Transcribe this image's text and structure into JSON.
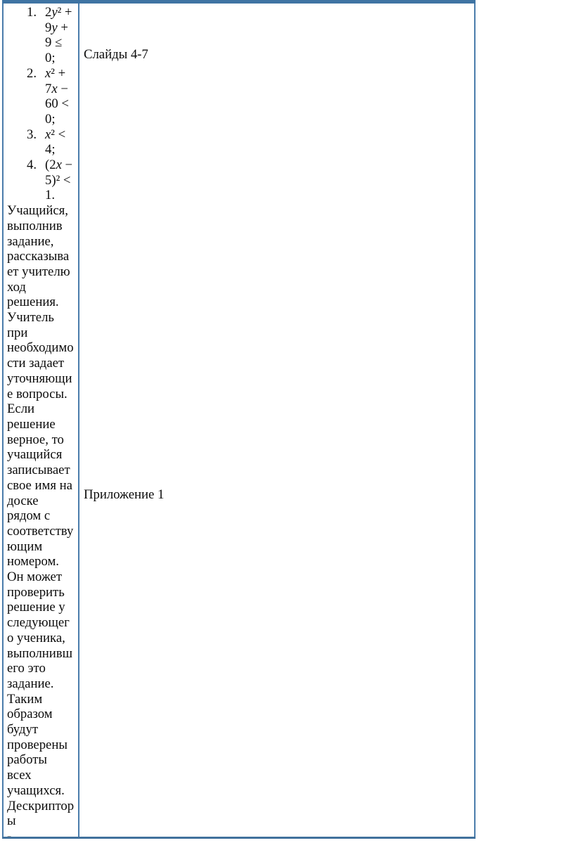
{
  "colors": {
    "border_blue": "#41719C",
    "border_blue_light": "#4a7cab",
    "text": "#0b0b0b",
    "background": "#ffffff"
  },
  "table": {
    "left_cell": {
      "task_list": [
        {
          "number": "1.",
          "expression": "2y² + 9y + 9 ≤ 0;",
          "lines": [
            "2y² +",
            "9y +",
            "9 ≤",
            "0;"
          ]
        },
        {
          "number": "2.",
          "expression": "x² + 7x − 60 < 0;",
          "lines": [
            "x² +",
            "7x −",
            "60 <",
            "0;"
          ]
        },
        {
          "number": "3.",
          "expression": "x² < 4;",
          "lines": [
            "x² <",
            "4;"
          ]
        },
        {
          "number": "4.",
          "expression": "(2x − 5)² < 1.",
          "lines": [
            "(2x −",
            "5)² <",
            "1."
          ]
        }
      ],
      "paragraph": "Учащийся, выполнив задание, рассказывает учителю ход решения. Учитель при необходимости задает уточняющие вопросы. Если решение верное, то учащийся записывает свое имя на доске рядом с соответствующим номером. Он может проверить решение у следующего ученика, выполнившего это задание. Таким образом будут проверены работы всех учащихся.",
      "descriptors_label": "Дескрипторы",
      "dash": "-"
    },
    "right_cell": {
      "slides_label": "Слайды 4-7",
      "appendix_label": "Приложение 1"
    }
  }
}
